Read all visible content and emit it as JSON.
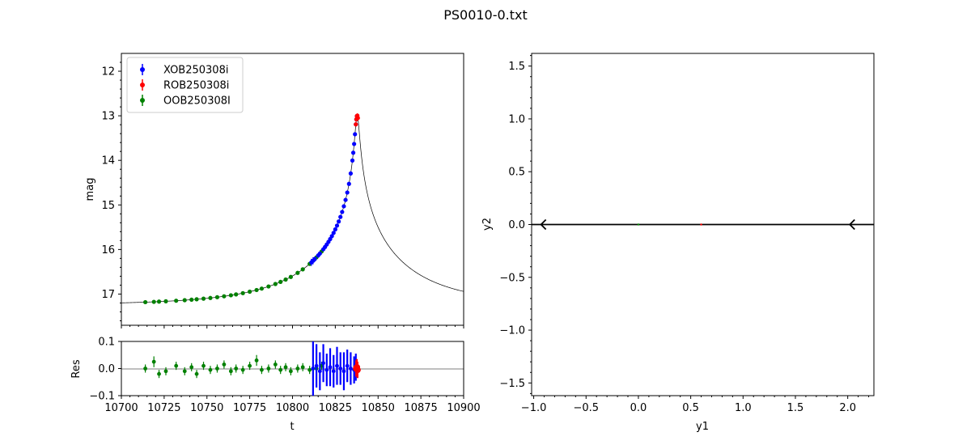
{
  "suptitle": "PS0010-0.txt",
  "colors": {
    "XOB250308i": "#0000ff",
    "ROB250308i": "#ff0000",
    "OOB250308I": "#008000",
    "model": "#000000"
  },
  "chart_data": [
    {
      "panel": "light-curve",
      "type": "scatter",
      "xlabel": "",
      "ylabel": "mag",
      "xlim": [
        10700,
        10900
      ],
      "ylim": [
        17.7,
        11.6
      ],
      "y_inverted": true,
      "yticks": [
        "12",
        "13",
        "14",
        "15",
        "16",
        "17"
      ],
      "legend": {
        "placement": "upper-left",
        "entries": [
          "XOB250308i",
          "ROB250308i",
          "OOB250308I"
        ]
      },
      "model_curve": {
        "t0": 10837.8,
        "u0": 0.02,
        "tE": 60,
        "mbase": 17.24,
        "fs": 1.0
      },
      "series": [
        {
          "name": "OOB250308I",
          "color": "#008000",
          "t": [
            10714,
            10719,
            10722,
            10726,
            10732,
            10737,
            10741,
            10744,
            10748,
            10752,
            10756,
            10760,
            10764,
            10767,
            10771,
            10775,
            10779,
            10782,
            10786,
            10790,
            10793,
            10796,
            10799,
            10803,
            10806,
            10810,
            10814,
            10817
          ],
          "err": [
            0.02,
            0.03,
            0.02,
            0.02,
            0.02,
            0.02,
            0.02,
            0.02,
            0.02,
            0.02,
            0.02,
            0.02,
            0.02,
            0.02,
            0.02,
            0.02,
            0.03,
            0.02,
            0.02,
            0.02,
            0.02,
            0.02,
            0.02,
            0.02,
            0.02,
            0.02,
            0.02,
            0.02
          ]
        },
        {
          "name": "XOB250308i",
          "color": "#0000ff",
          "t": [
            10811,
            10812,
            10813,
            10815,
            10816,
            10818,
            10819,
            10820,
            10821,
            10822,
            10823,
            10824,
            10825,
            10826,
            10827,
            10828,
            10829,
            10830,
            10831,
            10832,
            10833,
            10834,
            10835,
            10835.5,
            10836,
            10836.5,
            10837,
            10837.3,
            10837.6
          ],
          "err": [
            0.08,
            0.08,
            0.06,
            0.05,
            0.05,
            0.04,
            0.04,
            0.04,
            0.04,
            0.04,
            0.04,
            0.04,
            0.04,
            0.04,
            0.04,
            0.04,
            0.04,
            0.04,
            0.04,
            0.04,
            0.04,
            0.04,
            0.04,
            0.04,
            0.04,
            0.04,
            0.04,
            0.04,
            0.04
          ]
        },
        {
          "name": "ROB250308i",
          "color": "#ff0000",
          "t": [
            10837.0,
            10837.3,
            10837.6,
            10837.9,
            10838.2
          ],
          "err": [
            0.05,
            0.05,
            0.05,
            0.05,
            0.05
          ]
        }
      ]
    },
    {
      "panel": "residuals",
      "type": "scatter",
      "xlabel": "t",
      "ylabel": "Res",
      "xlim": [
        10700,
        10900
      ],
      "ylim": [
        -0.1,
        0.1
      ],
      "xticks": [
        "10700",
        "10725",
        "10750",
        "10775",
        "10800",
        "10825",
        "10850",
        "10875",
        "10900"
      ],
      "yticks": [
        "0.1",
        "0.0",
        "−0.1"
      ],
      "series": [
        {
          "name": "OOB250308I",
          "color": "#008000",
          "t": [
            10714,
            10719,
            10722,
            10726,
            10732,
            10737,
            10741,
            10744,
            10748,
            10752,
            10756,
            10760,
            10764,
            10767,
            10771,
            10775,
            10779,
            10782,
            10786,
            10790,
            10793,
            10796,
            10799,
            10803,
            10806,
            10810,
            10814,
            10817
          ],
          "res": [
            0.0,
            0.025,
            -0.02,
            -0.01,
            0.01,
            -0.01,
            0.005,
            -0.02,
            0.01,
            -0.005,
            0.0,
            0.015,
            -0.01,
            0.0,
            -0.005,
            0.01,
            0.03,
            -0.005,
            0.0,
            0.015,
            -0.005,
            0.005,
            -0.01,
            0.0,
            0.005,
            -0.005,
            0.0,
            0.01
          ],
          "err": [
            0.015,
            0.02,
            0.015,
            0.015,
            0.015,
            0.015,
            0.015,
            0.015,
            0.015,
            0.015,
            0.015,
            0.015,
            0.015,
            0.015,
            0.015,
            0.015,
            0.02,
            0.015,
            0.015,
            0.015,
            0.015,
            0.015,
            0.015,
            0.015,
            0.015,
            0.015,
            0.015,
            0.015
          ]
        },
        {
          "name": "XOB250308i",
          "color": "#0000ff",
          "t": [
            10812,
            10814,
            10816,
            10818,
            10820,
            10822,
            10824,
            10826,
            10828,
            10830,
            10832,
            10834,
            10836,
            10837
          ],
          "res": [
            0.0,
            0.01,
            -0.01,
            0.02,
            -0.005,
            0.005,
            -0.01,
            0.01,
            0.0,
            -0.01,
            0.01,
            0.0,
            -0.005,
            0.005
          ],
          "err": [
            0.1,
            0.08,
            0.07,
            0.07,
            0.06,
            0.07,
            0.06,
            0.07,
            0.06,
            0.07,
            0.06,
            0.06,
            0.05,
            0.05
          ]
        },
        {
          "name": "ROB250308i",
          "color": "#ff0000",
          "t": [
            10837.2,
            10837.6,
            10838.0
          ],
          "res": [
            0.0,
            0.005,
            -0.005
          ],
          "err": [
            0.03,
            0.03,
            0.03
          ]
        }
      ]
    },
    {
      "panel": "source-plane",
      "type": "line",
      "xlabel": "y1",
      "ylabel": "y2",
      "xlim": [
        -1.02,
        2.25
      ],
      "ylim": [
        -1.62,
        1.62
      ],
      "xticks": [
        "−1.0",
        "−0.5",
        "0.0",
        "0.5",
        "1.0",
        "1.5",
        "2.0"
      ],
      "yticks": [
        "1.5",
        "1.0",
        "0.5",
        "0.0",
        "−0.5",
        "−1.0",
        "−1.5"
      ],
      "trajectory": {
        "y2": 0.0,
        "arrow_at_y1": [
          -0.93,
          2.02
        ],
        "direction": "left"
      },
      "markers": [
        {
          "y1": 0.0,
          "y2": 0.0,
          "color": "#008000"
        },
        {
          "y1": 0.6,
          "y2": 0.0,
          "color": "#ff0000"
        }
      ]
    }
  ]
}
